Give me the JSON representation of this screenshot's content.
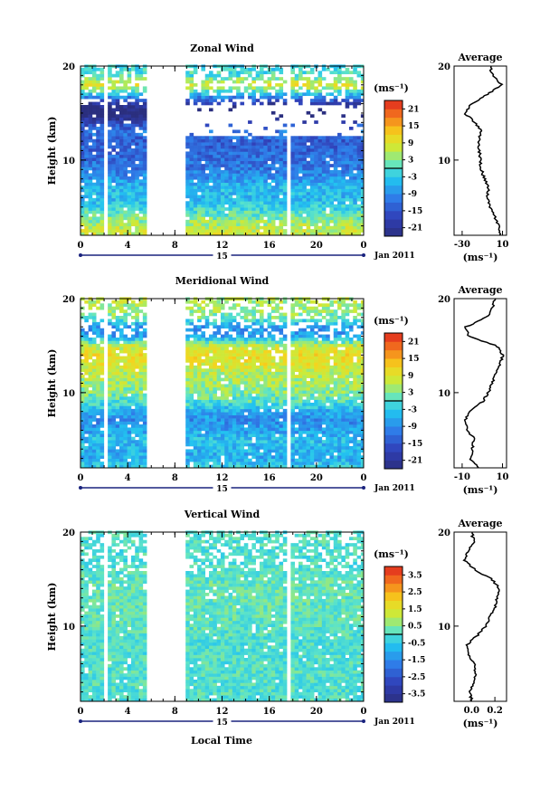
{
  "chart_data": {
    "type": "heatmap",
    "date_label": "Jan 2011",
    "day_label": "15",
    "xlabel": "Local Time",
    "average_title": "Average",
    "units": "(ms⁻¹)",
    "data_gaps_hours": [
      [
        2.1,
        2.4
      ],
      [
        5.5,
        8.9
      ],
      [
        17.5,
        17.8
      ],
      [
        23.7,
        23.9
      ]
    ],
    "panels": [
      {
        "title": "Zonal Wind",
        "ylabel": "Height (km)",
        "ylim": [
          2,
          20
        ],
        "xlim": [
          0,
          24
        ],
        "x_ticks": [
          "0",
          "4",
          "8",
          "12",
          "16",
          "20",
          "0"
        ],
        "y_ticks": [
          "10",
          "20"
        ],
        "colorbar": {
          "ticks": [
            "21",
            "15",
            "9",
            "3",
            "-3",
            "-9",
            "-15",
            "-21"
          ],
          "min": -24,
          "max": 24
        },
        "profile_heights_km": [
          2,
          3,
          4,
          5,
          6,
          7,
          8,
          9,
          10,
          11,
          12,
          13,
          14,
          15,
          16,
          17,
          18,
          19,
          20
        ],
        "profile_values": [
          8,
          6,
          2,
          -2,
          -5,
          -4,
          -8,
          -11,
          -12,
          -13,
          -14,
          -11,
          -17,
          -28,
          -20,
          -5,
          9,
          0,
          -2
        ],
        "profile_xlim": [
          -38,
          14
        ],
        "profile_x_ticks": [
          "-30",
          "10"
        ],
        "profile_y_ticks": [
          "10",
          "20"
        ],
        "wind_profile_km": [
          2,
          3,
          4,
          5,
          6,
          7,
          8,
          9,
          10,
          11,
          12,
          13,
          14,
          15,
          16,
          17,
          18,
          19,
          20
        ],
        "wind_profile_ms": [
          8,
          6,
          2,
          -2,
          -5,
          -4,
          -8,
          -11,
          -12,
          -13,
          -14,
          -11,
          -17,
          -28,
          -20,
          -5,
          9,
          0,
          -2
        ]
      },
      {
        "title": "Meridional Wind",
        "ylabel": "Height (km)",
        "ylim": [
          2,
          20
        ],
        "xlim": [
          0,
          24
        ],
        "x_ticks": [
          "0",
          "4",
          "8",
          "12",
          "16",
          "20",
          "0"
        ],
        "y_ticks": [
          "10",
          "20"
        ],
        "colorbar": {
          "ticks": [
            "21",
            "15",
            "9",
            "3",
            "-3",
            "-9",
            "-15",
            "-21"
          ],
          "min": -24,
          "max": 24
        },
        "profile_heights_km": [
          2,
          3,
          4,
          5,
          6,
          7,
          8,
          9,
          10,
          11,
          12,
          13,
          14,
          15,
          16,
          17,
          18,
          19,
          20
        ],
        "profile_values": [
          -2,
          -6,
          -5,
          -4,
          -7,
          -9,
          -6,
          0,
          3,
          5,
          6,
          9,
          10,
          7,
          -7,
          -8,
          2,
          5,
          6
        ],
        "profile_xlim": [
          -14,
          12
        ],
        "profile_x_ticks": [
          "-10",
          "10"
        ],
        "profile_y_ticks": [
          "10",
          "20"
        ],
        "wind_profile_km": [
          2,
          3,
          4,
          5,
          6,
          7,
          8,
          9,
          10,
          11,
          12,
          13,
          14,
          15,
          16,
          17,
          18,
          19,
          20
        ],
        "wind_profile_ms": [
          -2,
          -6,
          -5,
          -4,
          -7,
          -9,
          -6,
          0,
          3,
          5,
          6,
          9,
          10,
          7,
          -7,
          -8,
          2,
          5,
          6
        ]
      },
      {
        "title": "Vertical Wind",
        "ylabel": "Height (km)",
        "ylim": [
          2,
          20
        ],
        "xlim": [
          0,
          24
        ],
        "x_ticks": [
          "0",
          "4",
          "8",
          "12",
          "16",
          "20",
          "0"
        ],
        "y_ticks": [
          "10",
          "20"
        ],
        "colorbar": {
          "ticks": [
            "3.5",
            "2.5",
            "1.5",
            "0.5",
            "-0.5",
            "-1.5",
            "-2.5",
            "-3.5"
          ],
          "min": -4,
          "max": 4
        },
        "profile_heights_km": [
          2,
          3,
          4,
          5,
          6,
          7,
          8,
          9,
          10,
          11,
          12,
          13,
          14,
          15,
          16,
          17,
          18,
          19,
          20
        ],
        "profile_values": [
          0.0,
          -0.01,
          0.02,
          0.03,
          0.02,
          -0.03,
          -0.04,
          0.05,
          0.12,
          0.16,
          0.2,
          0.22,
          0.24,
          0.17,
          0.03,
          -0.06,
          -0.03,
          0.02,
          0.0
        ],
        "profile_xlim": [
          -0.15,
          0.3
        ],
        "profile_x_ticks": [
          "0.0",
          "0.2"
        ],
        "profile_y_ticks": [
          "10",
          "20"
        ],
        "wind_profile_km": [
          2,
          3,
          4,
          5,
          6,
          7,
          8,
          9,
          10,
          11,
          12,
          13,
          14,
          15,
          16,
          17,
          18,
          19,
          20
        ],
        "wind_profile_ms": [
          0.0,
          -0.01,
          0.02,
          0.03,
          0.02,
          -0.03,
          -0.04,
          0.05,
          0.12,
          0.16,
          0.2,
          0.22,
          0.24,
          0.17,
          0.03,
          -0.06,
          -0.03,
          0.02,
          0.0
        ]
      }
    ]
  }
}
